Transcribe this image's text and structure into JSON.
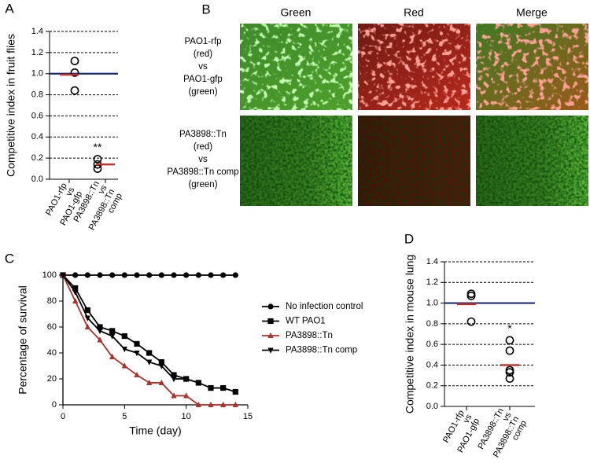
{
  "chart_data": [
    {
      "type": "dot",
      "panel_label": "A",
      "ylabel": "Competitive index in fruit flies",
      "categories": [
        [
          "PAO1-rfp",
          "vs",
          "PAO1-gfp"
        ],
        [
          "PA3898::Tn",
          "vs",
          "PA3898::Tn",
          "comp"
        ]
      ],
      "values": [
        [
          1.12,
          1.01,
          0.84
        ],
        [
          0.19,
          0.14,
          0.1
        ]
      ],
      "means": [
        0.99,
        0.14
      ],
      "mean_color": "#c0302a",
      "ref_line": 1,
      "ref_color": "#1f2e7a",
      "annotation": "**",
      "ylim": [
        0,
        1.4
      ],
      "yticks": [
        {
          "value": 0,
          "label": "0.0"
        },
        0.2,
        0.4,
        0.6,
        0.8,
        {
          "value": 1,
          "label": "1.0"
        },
        1.2,
        1.4
      ],
      "grid": true
    },
    {
      "type": "line",
      "panel_label": "C",
      "xlabel": "Time (day)",
      "ylabel": "Percentage of survival",
      "x": [
        0,
        1,
        2,
        3,
        4,
        5,
        6,
        7,
        8,
        9,
        10,
        11,
        12,
        13,
        14
      ],
      "series": [
        {
          "name": "No infection control",
          "color": "#000000",
          "marker": "circle",
          "values": [
            100,
            100,
            100,
            100,
            100,
            100,
            100,
            100,
            100,
            100,
            100,
            100,
            100,
            100,
            100
          ]
        },
        {
          "name": "WT PAO1",
          "color": "#000000",
          "marker": "square",
          "values": [
            100,
            90,
            73,
            60,
            57,
            53,
            47,
            40,
            33,
            23,
            20,
            17,
            13,
            13,
            10
          ]
        },
        {
          "name": "PA3898::Tn",
          "color": "#a8322a",
          "marker": "triangle-up",
          "values": [
            100,
            80,
            60,
            50,
            37,
            30,
            23,
            17,
            17,
            7,
            7,
            0,
            0,
            0,
            0
          ]
        },
        {
          "name": "PA3898::Tn comp",
          "color": "#000000",
          "marker": "triangle-down",
          "values": [
            100,
            87,
            67,
            57,
            53,
            43,
            40,
            33,
            30,
            20,
            20,
            17,
            null,
            null,
            null
          ]
        }
      ],
      "xlim": [
        0,
        15
      ],
      "xticks": [
        0,
        5,
        10,
        15
      ],
      "ylim": [
        0,
        100
      ],
      "yticks": [
        0,
        20,
        40,
        60,
        80,
        100
      ]
    },
    {
      "type": "dot",
      "panel_label": "D",
      "ylabel": "Competitive index in mouse lung",
      "categories": [
        [
          "PAO1-rfp",
          "vs",
          "PAO1-gfp"
        ],
        [
          "PA3898::Tn",
          "vs",
          "PA3898::Tn",
          "comp"
        ]
      ],
      "values": [
        [
          1.09,
          1.07,
          0.82
        ],
        [
          0.64,
          0.54,
          0.35,
          0.33,
          0.27
        ]
      ],
      "means": [
        0.99,
        0.4
      ],
      "mean_color": "#c0302a",
      "ref_line": 1,
      "ref_color": "#1f2e7a",
      "annotation": "*",
      "ylim": [
        0,
        1.4
      ],
      "yticks": [
        {
          "value": 0,
          "label": "0.0"
        },
        0.2,
        0.4,
        0.6,
        0.8,
        {
          "value": 1,
          "label": "1.0"
        },
        1.2,
        1.4
      ],
      "grid": true
    }
  ],
  "image_panel": {
    "panel_label": "B",
    "columns": [
      "Green",
      "Red",
      "Merge"
    ],
    "rows": [
      [
        "PAO1-rfp",
        "(red)",
        "vs",
        "PAO1-gfp",
        "(green)"
      ],
      [
        "PA3898::Tn",
        "(red)",
        "vs",
        "PA3898::Tn comp",
        "(green)"
      ]
    ]
  }
}
